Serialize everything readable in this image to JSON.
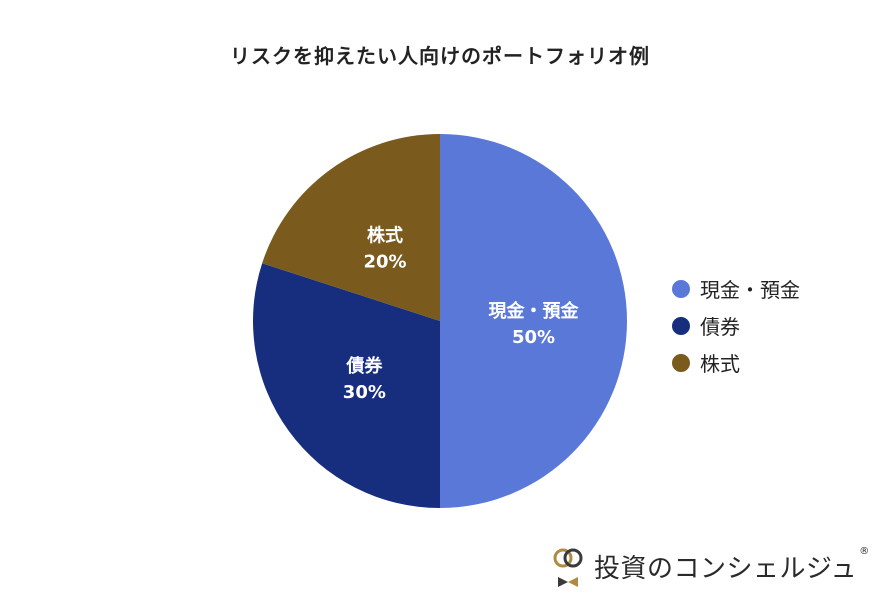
{
  "chart_data": {
    "type": "pie",
    "title": "リスクを抑えたい人向けのポートフォリオ例",
    "slices": [
      {
        "label": "現金・預金",
        "value": 50,
        "value_label": "50%",
        "color": "#5a78d8"
      },
      {
        "label": "債券",
        "value": 30,
        "value_label": "30%",
        "color": "#172e7e"
      },
      {
        "label": "株式",
        "value": 20,
        "value_label": "20%",
        "color": "#7a5a1d"
      }
    ],
    "legend_position": "right"
  },
  "legend": {
    "items": [
      {
        "label": "現金・預金",
        "color": "#5a78d8"
      },
      {
        "label": "債券",
        "color": "#172e7e"
      },
      {
        "label": "株式",
        "color": "#7a5a1d"
      }
    ]
  },
  "brand": {
    "name": "投資のコンシェルジュ",
    "reg_mark": "®",
    "colors": {
      "ring_gold": "#b08a3e",
      "ring_dark": "#3a3a3a"
    }
  }
}
